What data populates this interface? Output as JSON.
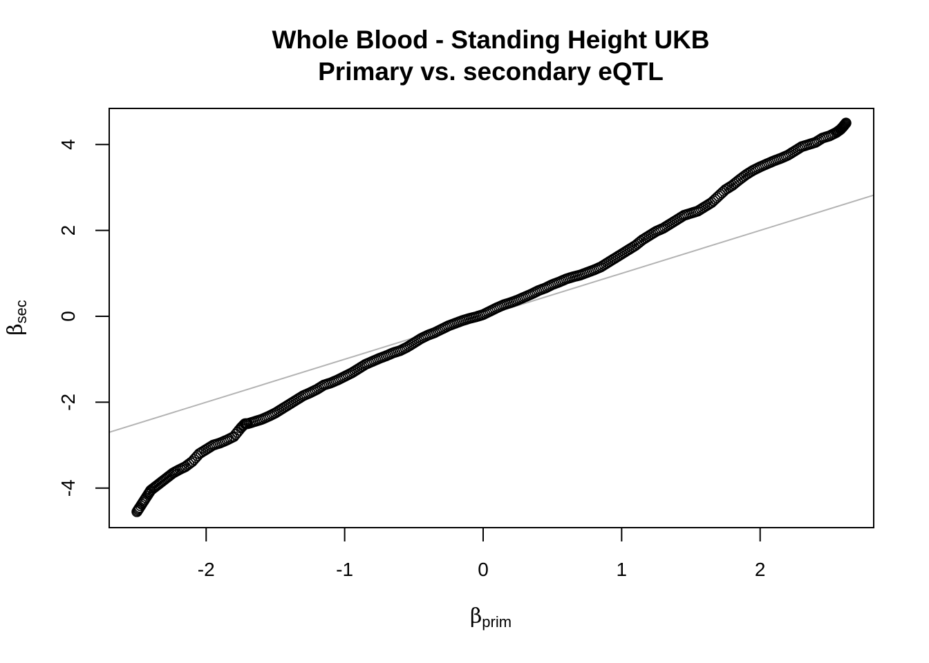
{
  "chart_data": {
    "type": "scatter",
    "title": "Whole Blood - Standing Height UKB",
    "subtitle": "Primary vs. secondary eQTL",
    "xlabel": {
      "symbol": "β",
      "subscript": "prim"
    },
    "ylabel": {
      "symbol": "β",
      "subscript": "sec"
    },
    "xlim": [
      -2.7,
      2.82
    ],
    "ylim": [
      -4.92,
      4.84
    ],
    "x_ticks": [
      -2,
      -1,
      0,
      1,
      2
    ],
    "x_tick_labels": [
      "-2",
      "-1",
      "0",
      "1",
      "2"
    ],
    "y_ticks": [
      -4,
      -2,
      0,
      2,
      4
    ],
    "y_tick_labels": [
      "-4",
      "-2",
      "0",
      "2",
      "4"
    ],
    "grid": false,
    "legend": "none",
    "point_shape": "open-circle",
    "point_color": "#000000",
    "reference_line": {
      "slope": 1,
      "intercept": 0,
      "color": "#b3b3b3"
    },
    "series": [
      {
        "x": [
          -2.5,
          -2.48,
          -2.45,
          -2.42,
          -2.4,
          -2.36,
          -2.32,
          -2.28,
          -2.24,
          -2.2,
          -2.15,
          -2.1,
          -2.05,
          -2.0,
          -1.95,
          -1.9,
          -1.85,
          -1.8,
          -1.75,
          -1.72,
          -1.7,
          -1.65,
          -1.6,
          -1.55,
          -1.5,
          -1.45,
          -1.4,
          -1.35,
          -1.3,
          -1.25,
          -1.2,
          -1.15,
          -1.1,
          -1.05,
          -1.0,
          -0.95,
          -0.9,
          -0.85,
          -0.8,
          -0.75,
          -0.7,
          -0.65,
          -0.6,
          -0.55,
          -0.5,
          -0.45,
          -0.4,
          -0.35,
          -0.3,
          -0.25,
          -0.2,
          -0.15,
          -0.1,
          -0.05,
          0.0,
          0.05,
          0.1,
          0.15,
          0.2,
          0.25,
          0.3,
          0.35,
          0.4,
          0.45,
          0.5,
          0.55,
          0.6,
          0.65,
          0.7,
          0.75,
          0.8,
          0.85,
          0.9,
          0.95,
          1.0,
          1.05,
          1.1,
          1.15,
          1.2,
          1.25,
          1.3,
          1.35,
          1.4,
          1.45,
          1.5,
          1.55,
          1.6,
          1.65,
          1.7,
          1.75,
          1.8,
          1.85,
          1.9,
          1.95,
          2.0,
          2.05,
          2.1,
          2.15,
          2.2,
          2.25,
          2.3,
          2.35,
          2.4,
          2.45,
          2.5,
          2.55,
          2.58,
          2.6,
          2.62
        ],
        "y": [
          -4.55,
          -4.45,
          -4.3,
          -4.15,
          -4.05,
          -3.95,
          -3.85,
          -3.75,
          -3.65,
          -3.58,
          -3.5,
          -3.38,
          -3.2,
          -3.1,
          -3.0,
          -2.95,
          -2.88,
          -2.8,
          -2.6,
          -2.5,
          -2.5,
          -2.45,
          -2.4,
          -2.33,
          -2.25,
          -2.15,
          -2.05,
          -1.95,
          -1.85,
          -1.78,
          -1.7,
          -1.6,
          -1.55,
          -1.48,
          -1.4,
          -1.32,
          -1.22,
          -1.12,
          -1.05,
          -0.98,
          -0.92,
          -0.85,
          -0.8,
          -0.72,
          -0.62,
          -0.52,
          -0.44,
          -0.38,
          -0.3,
          -0.22,
          -0.16,
          -0.1,
          -0.05,
          -0.01,
          0.04,
          0.12,
          0.2,
          0.27,
          0.32,
          0.38,
          0.45,
          0.52,
          0.6,
          0.66,
          0.74,
          0.8,
          0.87,
          0.92,
          0.96,
          1.02,
          1.08,
          1.15,
          1.25,
          1.35,
          1.45,
          1.55,
          1.65,
          1.78,
          1.88,
          1.98,
          2.05,
          2.15,
          2.25,
          2.35,
          2.4,
          2.45,
          2.55,
          2.65,
          2.8,
          2.95,
          3.05,
          3.18,
          3.3,
          3.4,
          3.48,
          3.55,
          3.62,
          3.68,
          3.75,
          3.85,
          3.95,
          4.0,
          4.05,
          4.15,
          4.2,
          4.28,
          4.35,
          4.42,
          4.5
        ]
      }
    ]
  }
}
